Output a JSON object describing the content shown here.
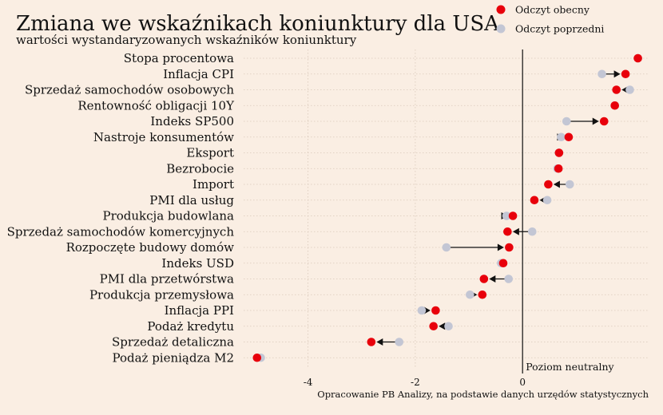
{
  "chart_data": {
    "type": "scatter",
    "title": "Zmiana we wskaźnikach koniunktury dla USA",
    "subtitle": "wartości wystandaryzowanych wskaźników koniunktury",
    "legend": {
      "placement": "top-right",
      "current": "Odczyt obecny",
      "previous": "Odczyt poprzedni"
    },
    "colors": {
      "current": "#e8000b",
      "previous": "#c3c6d4",
      "arrow": "#111111"
    },
    "xlim": [
      -5.2,
      2.35
    ],
    "xticks": [
      -4,
      -2,
      0
    ],
    "xtick_labels": [
      "-4",
      "-2",
      "0"
    ],
    "neutral_line_x": 0,
    "neutral_label": "Poziom neutralny",
    "source": "Opracowanie PB Analizy, na podstawie danych urzędów statystycznych",
    "categories": [
      "Stopa procentowa",
      "Inflacja CPI",
      "Sprzedaż samochodów osobowych",
      "Rentowność obligacji 10Y",
      "Indeks SP500",
      "Nastroje konsumentów",
      "Eksport",
      "Bezrobocie",
      "Import",
      "PMI dla usług",
      "Produkcja budowlana",
      "Sprzedaż samochodów komercyjnych",
      "Rozpoczęte budowy domów",
      "Indeks USD",
      "PMI dla przetwórstwa",
      "Produkcja przemysłowa",
      "Inflacja PPI",
      "Podaż kredytu",
      "Sprzedaż detaliczna",
      "Podaż pieniądza M2"
    ],
    "series": [
      {
        "name": "Odczyt obecny",
        "values": [
          2.15,
          1.92,
          1.75,
          1.72,
          1.52,
          0.86,
          0.68,
          0.67,
          0.48,
          0.22,
          -0.18,
          -0.28,
          -0.25,
          -0.36,
          -0.72,
          -0.75,
          -1.62,
          -1.66,
          -2.82,
          -4.95
        ]
      },
      {
        "name": "Odczyt poprzedni",
        "values": [
          2.15,
          1.48,
          2.0,
          1.72,
          0.82,
          0.72,
          0.68,
          0.65,
          0.88,
          0.46,
          -0.3,
          0.18,
          -1.42,
          -0.4,
          -0.26,
          -0.98,
          -1.88,
          -1.38,
          -2.3,
          -4.88
        ]
      }
    ]
  }
}
